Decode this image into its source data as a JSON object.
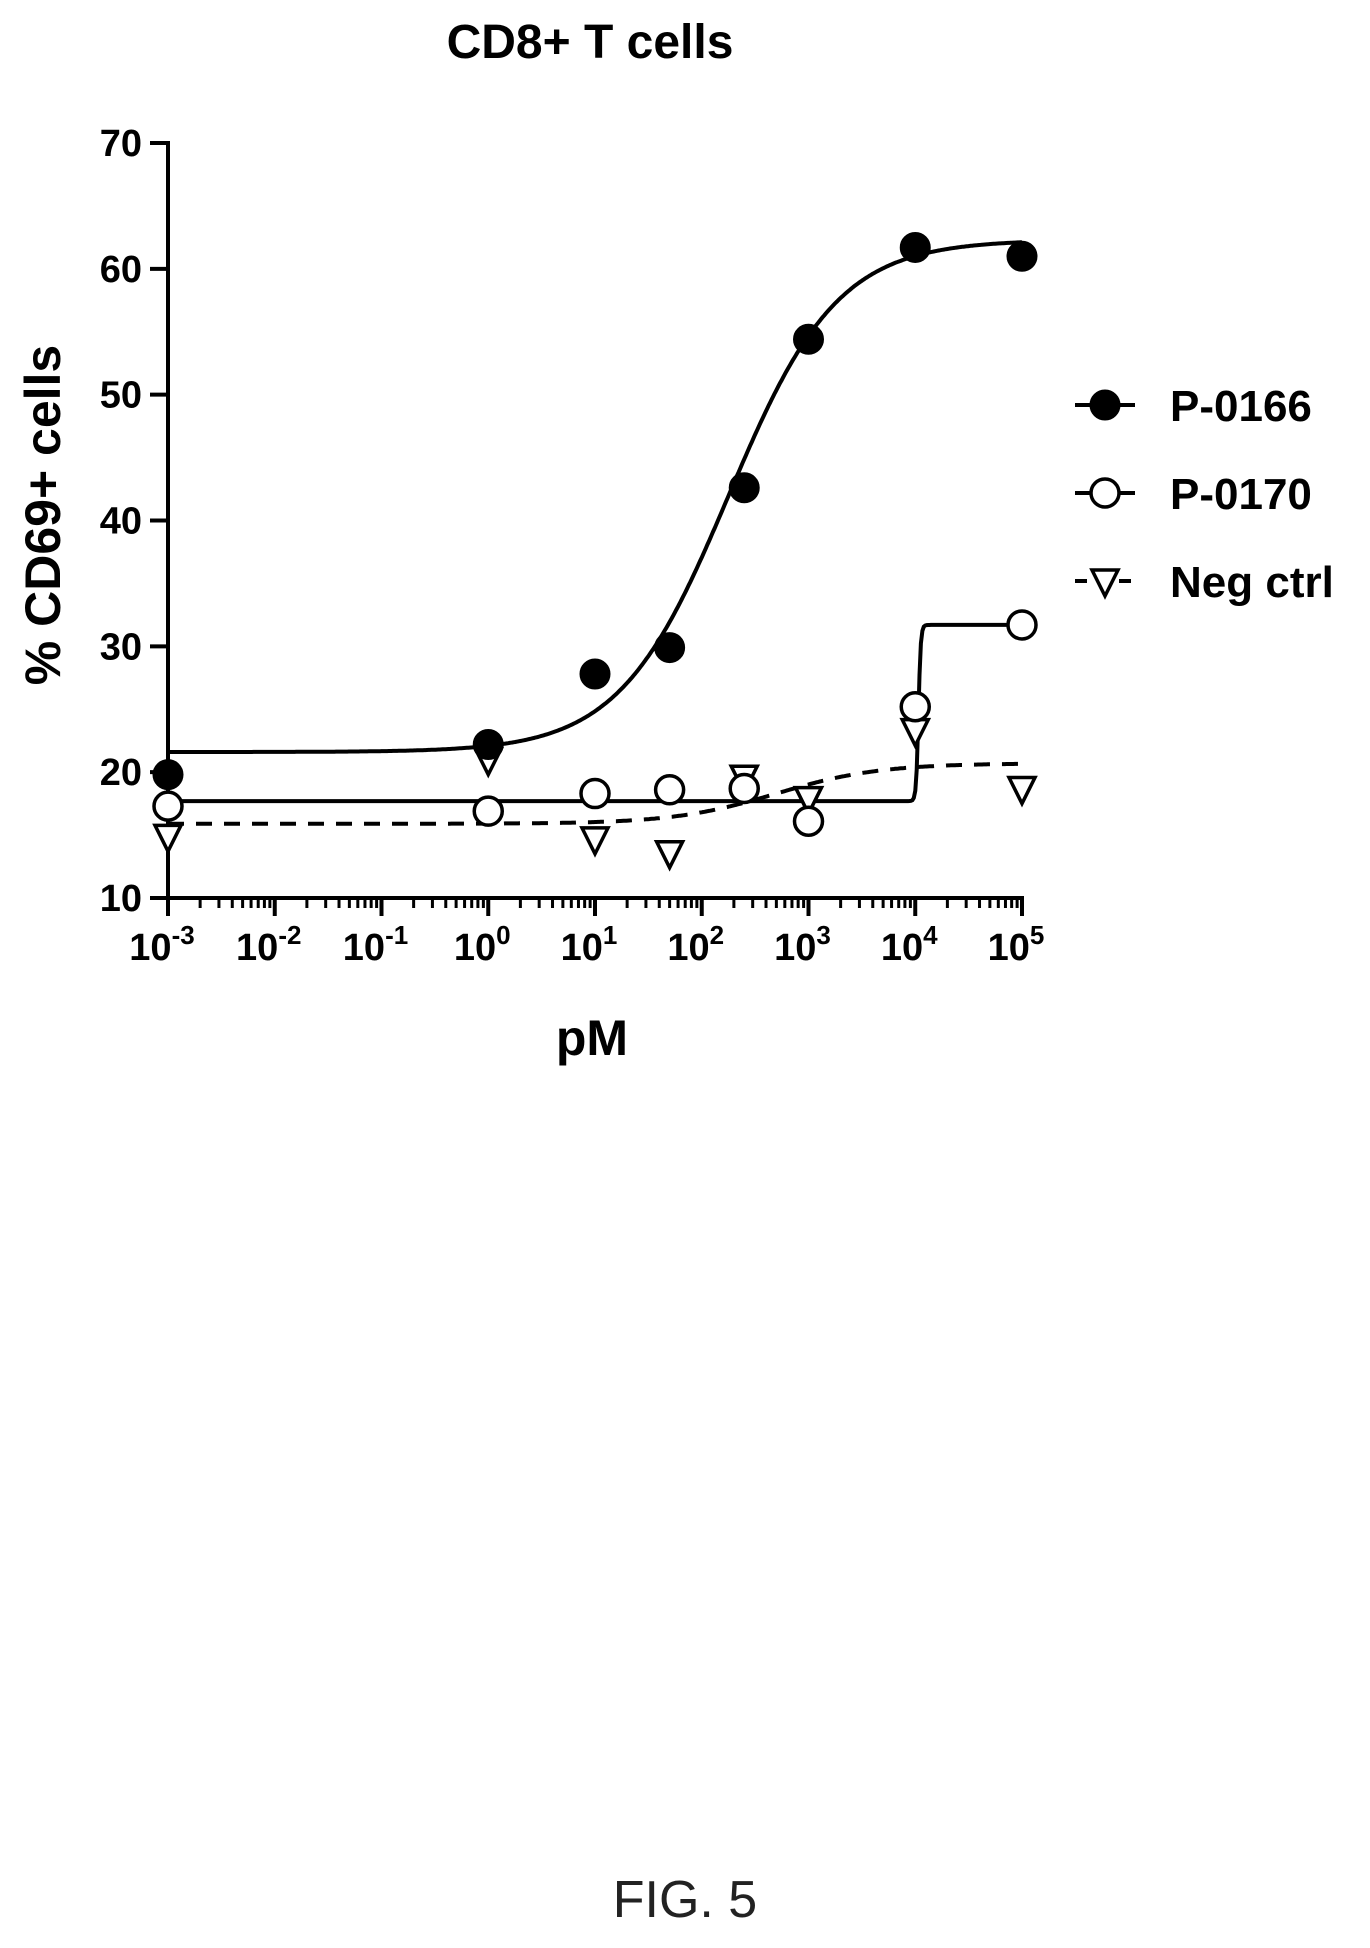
{
  "figure_label": "FIG. 5",
  "chart_data": {
    "type": "scatter",
    "title": "CD8+ T cells",
    "xlabel": "pM",
    "ylabel": "% CD69+ cells",
    "x_scale": "log",
    "xlim": [
      0.001,
      100000
    ],
    "ylim": [
      10,
      70
    ],
    "x_ticks": [
      {
        "value": 0.001,
        "base": "10",
        "exp": "-3"
      },
      {
        "value": 0.01,
        "base": "10",
        "exp": "-2"
      },
      {
        "value": 0.1,
        "base": "10",
        "exp": "-1"
      },
      {
        "value": 1,
        "base": "10",
        "exp": "0"
      },
      {
        "value": 10,
        "base": "10",
        "exp": "1"
      },
      {
        "value": 100,
        "base": "10",
        "exp": "2"
      },
      {
        "value": 1000,
        "base": "10",
        "exp": "3"
      },
      {
        "value": 10000,
        "base": "10",
        "exp": "4"
      },
      {
        "value": 100000,
        "base": "10",
        "exp": "5"
      }
    ],
    "y_ticks": [
      10,
      20,
      30,
      40,
      50,
      60,
      70
    ],
    "grid": false,
    "legend_position": "right",
    "series": [
      {
        "name": "P-0166",
        "marker": "filled-circle",
        "line": "solid",
        "x": [
          0.001,
          1,
          10,
          50,
          250,
          1000,
          10000,
          100000
        ],
        "y": [
          19.8,
          22.2,
          27.8,
          29.9,
          42.6,
          54.4,
          61.7,
          61.0
        ],
        "fit": {
          "bottom": 21.6,
          "top": 62.3,
          "logEC50": 2.25,
          "hill": 0.85
        }
      },
      {
        "name": "P-0170",
        "marker": "open-circle",
        "line": "solid",
        "x": [
          0.001,
          1,
          10,
          50,
          250,
          1000,
          10000,
          100000
        ],
        "y": [
          17.3,
          16.9,
          18.3,
          18.6,
          18.7,
          16.1,
          25.2,
          31.7
        ],
        "fit": {
          "bottom": 17.7,
          "top": 31.7,
          "logEC50": 4.03,
          "hill": 40
        }
      },
      {
        "name": "Neg ctrl",
        "marker": "open-triangle-down",
        "line": "dashed",
        "x": [
          0.001,
          1,
          10,
          50,
          250,
          1000,
          10000,
          100000
        ],
        "y": [
          14.9,
          21.0,
          14.7,
          13.6,
          19.6,
          17.9,
          23.3,
          18.7
        ],
        "fit": {
          "bottom": 15.9,
          "top": 20.7,
          "logEC50": 2.7,
          "hill": 0.9
        }
      }
    ]
  }
}
